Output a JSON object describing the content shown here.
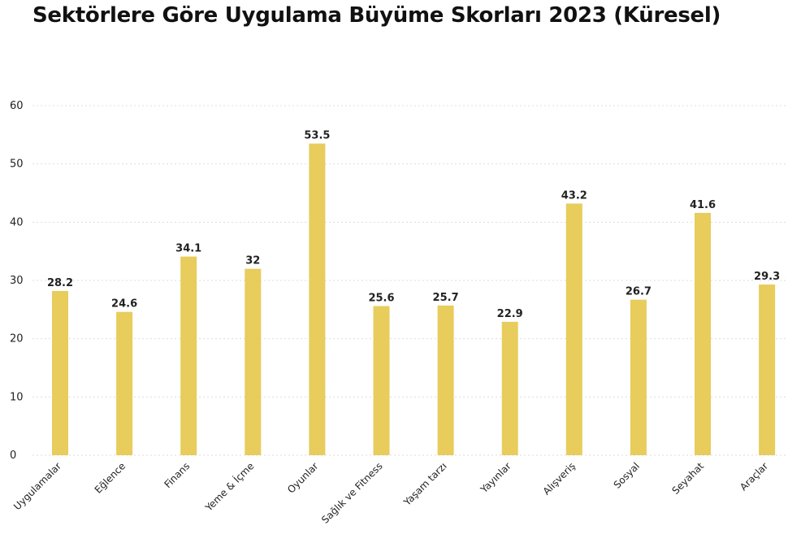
{
  "chart_data": {
    "type": "bar",
    "title": "Sektörlere Göre Uygulama Büyüme Skorları 2023 (Küresel)",
    "categories": [
      "Uygulamalar",
      "Eğlence",
      "Finans",
      "Yeme & İçme",
      "Oyunlar",
      "Sağlık ve Fitness",
      "Yaşam tarzı",
      "Yayınlar",
      "Alışveriş",
      "Sosyal",
      "Seyahat",
      "Araçlar"
    ],
    "values": [
      28.2,
      24.6,
      34.1,
      32,
      53.5,
      25.6,
      25.7,
      22.9,
      43.2,
      26.7,
      41.6,
      29.3
    ],
    "value_labels": [
      "28.2",
      "24.6",
      "34.1",
      "32",
      "53.5",
      "25.6",
      "25.7",
      "22.9",
      "43.2",
      "26.7",
      "41.6",
      "29.3"
    ],
    "yticks": [
      "0",
      "10",
      "20",
      "30",
      "40",
      "50",
      "60"
    ],
    "ylim": [
      0,
      60
    ],
    "grid": true,
    "bar_color": "#e8cc5c"
  }
}
